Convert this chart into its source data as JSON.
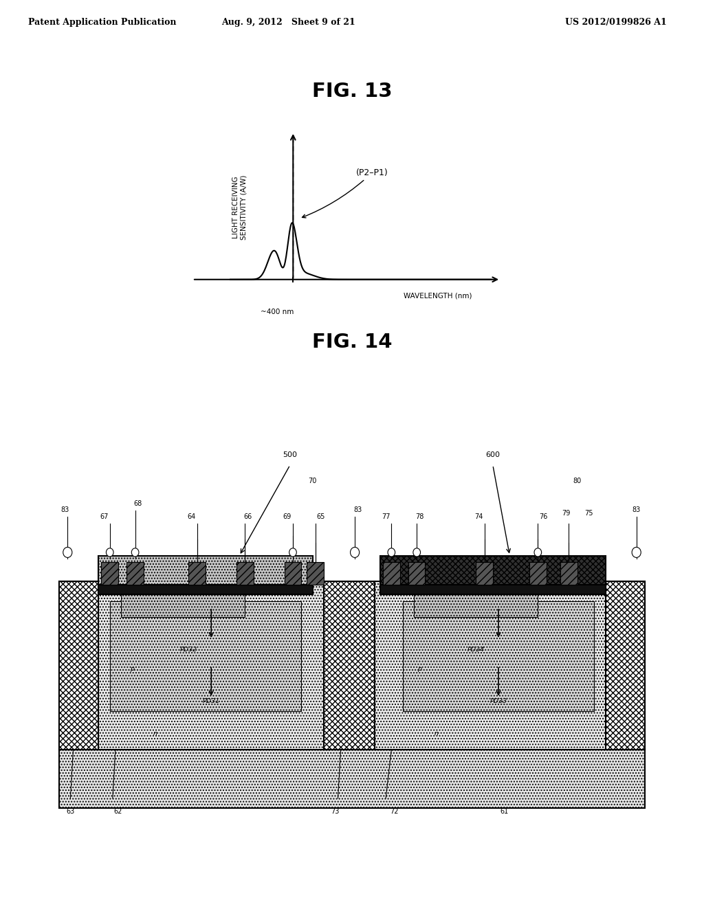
{
  "header_left": "Patent Application Publication",
  "header_center": "Aug. 9, 2012   Sheet 9 of 21",
  "header_right": "US 2012/0199826 A1",
  "fig13_title": "FIG. 13",
  "fig14_title": "FIG. 14",
  "graph_ylabel": "LIGHT RECEIVING\nSENSITIVITY (A/W)",
  "graph_xlabel": "WAVELENGTH (nm)",
  "graph_annotation": "(P2–P1)",
  "graph_400nm": "~400 nm",
  "bg_color": "#ffffff"
}
